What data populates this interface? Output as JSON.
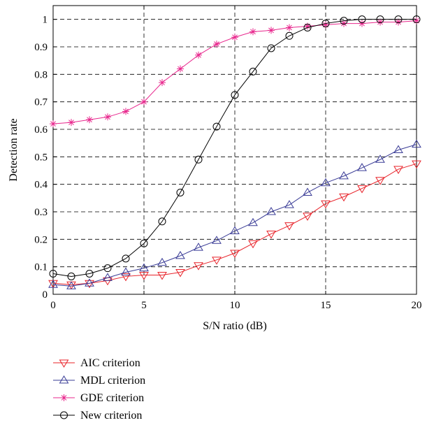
{
  "chart_data": {
    "type": "line",
    "title": "",
    "xlabel": "S/N ratio (dB)",
    "ylabel": "Detection rate",
    "xlim": [
      0,
      20
    ],
    "ylim": [
      0,
      1.05
    ],
    "x_ticks": [
      0,
      5,
      10,
      15,
      20
    ],
    "y_ticks": [
      0,
      0.1,
      0.2,
      0.3,
      0.4,
      0.5,
      0.6,
      0.7,
      0.8,
      0.9,
      1
    ],
    "x_tick_labels": [
      "0",
      "5",
      "10",
      "15",
      "20"
    ],
    "y_tick_labels": [
      "0",
      "0.1",
      "0.2",
      "0.3",
      "0.4",
      "0.5",
      "0.6",
      "0.7",
      "0.8",
      "0.9",
      "1"
    ],
    "grid": true,
    "grid_style": "dashed",
    "legend_position": "below",
    "x": [
      0,
      1,
      2,
      3,
      4,
      5,
      6,
      7,
      8,
      9,
      10,
      11,
      12,
      13,
      14,
      15,
      16,
      17,
      18,
      19,
      20
    ],
    "series": [
      {
        "name": "AIC criterion",
        "color": "#e8232a",
        "marker": "triangle-down",
        "values": [
          0.04,
          0.035,
          0.04,
          0.05,
          0.065,
          0.07,
          0.07,
          0.08,
          0.105,
          0.125,
          0.15,
          0.185,
          0.22,
          0.25,
          0.285,
          0.33,
          0.355,
          0.385,
          0.415,
          0.455,
          0.475
        ]
      },
      {
        "name": "MDL criterion",
        "color": "#3a3c96",
        "marker": "triangle-up",
        "values": [
          0.035,
          0.03,
          0.04,
          0.06,
          0.08,
          0.095,
          0.115,
          0.14,
          0.17,
          0.195,
          0.23,
          0.26,
          0.3,
          0.325,
          0.37,
          0.405,
          0.43,
          0.46,
          0.49,
          0.525,
          0.545
        ]
      },
      {
        "name": "GDE criterion",
        "color": "#e8278d",
        "marker": "star",
        "values": [
          0.62,
          0.625,
          0.635,
          0.645,
          0.665,
          0.7,
          0.77,
          0.82,
          0.87,
          0.91,
          0.935,
          0.955,
          0.96,
          0.97,
          0.975,
          0.98,
          0.985,
          0.985,
          0.99,
          0.99,
          0.995
        ]
      },
      {
        "name": "New criterion",
        "color": "#000000",
        "marker": "circle",
        "values": [
          0.075,
          0.065,
          0.075,
          0.095,
          0.13,
          0.185,
          0.265,
          0.37,
          0.49,
          0.61,
          0.725,
          0.81,
          0.895,
          0.94,
          0.97,
          0.985,
          0.995,
          1.0,
          1.0,
          1.0,
          1.0
        ]
      }
    ]
  }
}
